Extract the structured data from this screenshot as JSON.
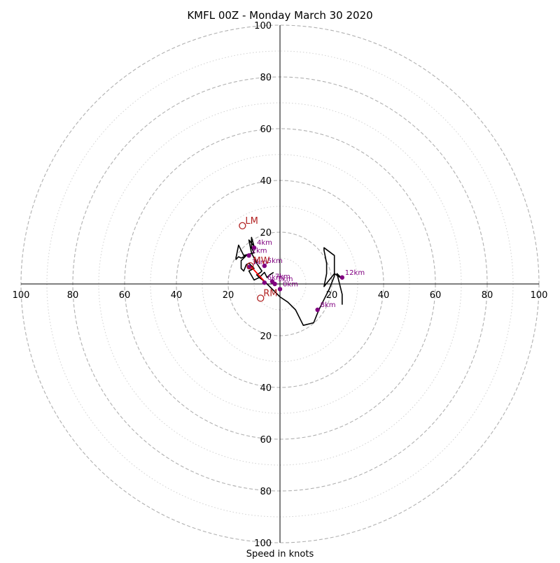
{
  "chart_data": {
    "type": "scatter",
    "title": "KMFL 00Z - Monday March 30 2020",
    "xlabel": "Speed in knots",
    "ylabel": "",
    "xlim": [
      -100,
      100
    ],
    "ylim": [
      -100,
      100
    ],
    "units": "knots",
    "grid": true,
    "major_rings": [
      20,
      40,
      60,
      80,
      100
    ],
    "minor_rings": [
      10,
      30,
      50,
      70,
      90
    ],
    "ticks": {
      "x_left": [
        "100",
        "80",
        "60",
        "40",
        "20"
      ],
      "x_right": [
        "20",
        "40",
        "60",
        "80",
        "100"
      ],
      "y_top": [
        "100",
        "80",
        "60",
        "40",
        "20"
      ],
      "y_bottom": [
        "20",
        "40",
        "60",
        "80",
        "100"
      ]
    },
    "tick_values": [
      20,
      40,
      60,
      80,
      100
    ],
    "colors": {
      "hodograph": "#000000",
      "mean_wind_segment": "#ff0000",
      "height_points": "#800080",
      "storm_motion": "#b22222",
      "grid": "#b0b0b0",
      "axes": "#000000"
    },
    "series": [
      {
        "points": [
          [
            -2.5,
            4.5
          ],
          [
            -4,
            3.5
          ],
          [
            -5,
            2.5
          ],
          [
            -6,
            4.5
          ],
          [
            -8,
            2.5
          ],
          [
            -10,
            1.5
          ],
          [
            -12,
            5
          ],
          [
            -10,
            6
          ],
          [
            -12,
            8
          ],
          [
            -13,
            7.5
          ],
          [
            -14,
            5
          ],
          [
            -15,
            6
          ],
          [
            -15,
            9
          ],
          [
            -13,
            11
          ],
          [
            -15,
            10
          ],
          [
            -16,
            10.5
          ],
          [
            -17,
            9.5
          ],
          [
            -17,
            10
          ],
          [
            -16,
            15
          ],
          [
            -14,
            11
          ],
          [
            -12,
            11.5
          ],
          [
            -10,
            12
          ],
          [
            -11,
            14
          ],
          [
            -11,
            18
          ],
          [
            -10,
            14.5
          ],
          [
            -12,
            17
          ],
          [
            -11,
            12
          ],
          [
            -10,
            10
          ],
          [
            -9,
            8
          ],
          [
            -8,
            6.5
          ],
          [
            -7,
            5
          ],
          [
            -7.5,
            4.5
          ],
          [
            -9,
            3.5
          ],
          [
            -8,
            2.5
          ],
          [
            -6,
            1
          ],
          [
            -4,
            -1
          ],
          [
            -2,
            -3
          ],
          [
            0,
            -5
          ],
          [
            3,
            -7
          ],
          [
            6,
            -10
          ],
          [
            9,
            -16
          ],
          [
            13,
            -15
          ],
          [
            15,
            -10
          ],
          [
            17,
            -6
          ],
          [
            19,
            -2
          ],
          [
            21,
            3
          ],
          [
            21,
            11
          ],
          [
            17,
            14
          ],
          [
            17,
            13
          ],
          [
            18,
            8
          ],
          [
            18,
            4
          ],
          [
            17,
            -1
          ],
          [
            21,
            4
          ],
          [
            24,
            2
          ],
          [
            22,
            4
          ],
          [
            23,
            0
          ],
          [
            24,
            -4
          ],
          [
            24,
            -8
          ]
        ]
      }
    ],
    "height_markers": [
      {
        "label": "0km",
        "u": 0,
        "v": -2
      },
      {
        "label": "1km",
        "u": -2,
        "v": 0
      },
      {
        "label": "2km",
        "u": -12,
        "v": 11
      },
      {
        "label": "3km",
        "u": -12,
        "v": 6.5
      },
      {
        "label": "4km",
        "u": -10,
        "v": 14
      },
      {
        "label": "5km",
        "u": -6,
        "v": 7
      },
      {
        "label": "6km",
        "u": -6,
        "v": 0.5
      },
      {
        "label": "7km",
        "u": -3,
        "v": 1
      },
      {
        "label": "8km",
        "u": 14.5,
        "v": -10
      },
      {
        "label": "12km",
        "u": 24,
        "v": 2.5
      }
    ],
    "storm_motion": [
      {
        "label": "LM",
        "u": -14.5,
        "v": 22.5
      },
      {
        "label": "MW",
        "u": -11.5,
        "v": 7
      },
      {
        "label": "RM",
        "u": -7.5,
        "v": -5.5
      }
    ],
    "mean_wind_segment": [
      [
        -11.5,
        7
      ],
      [
        -6,
        1
      ]
    ]
  }
}
